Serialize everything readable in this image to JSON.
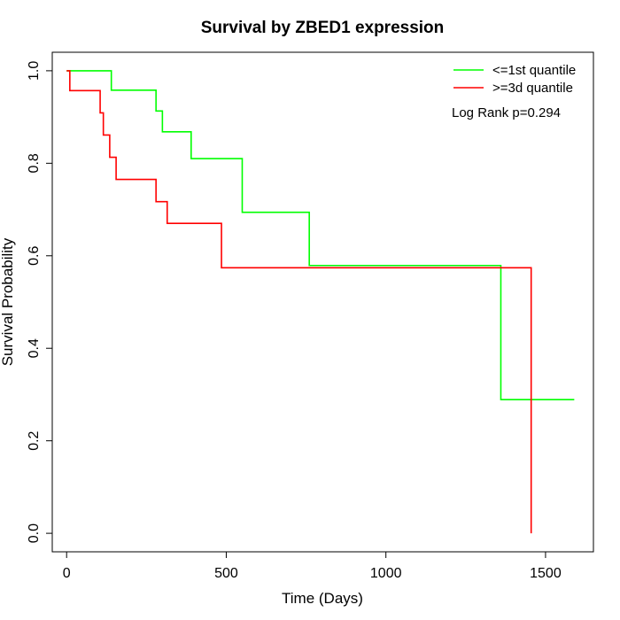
{
  "chart_data": {
    "type": "line",
    "title": "Survival by ZBED1 expression",
    "xlabel": "Time (Days)",
    "ylabel": "Survival Probability",
    "xlim": [
      -45,
      1650
    ],
    "ylim": [
      -0.04,
      1.04
    ],
    "x_ticks": [
      {
        "value": 0,
        "label": "0"
      },
      {
        "value": 500,
        "label": "500"
      },
      {
        "value": 1000,
        "label": "1000"
      },
      {
        "value": 1500,
        "label": "1500"
      }
    ],
    "y_ticks": [
      {
        "value": 0.0,
        "label": "0.0"
      },
      {
        "value": 0.2,
        "label": "0.2"
      },
      {
        "value": 0.4,
        "label": "0.4"
      },
      {
        "value": 0.6,
        "label": "0.6"
      },
      {
        "value": 0.8,
        "label": "0.8"
      },
      {
        "value": 1.0,
        "label": "1.0"
      }
    ],
    "grid": false,
    "legend_position": "top-right",
    "series": [
      {
        "name": "<=1st quantile",
        "color": "#00ff00",
        "style": "step",
        "x": [
          0,
          140,
          280,
          300,
          390,
          550,
          760,
          1360,
          1590
        ],
        "y": [
          1.0,
          0.958,
          0.913,
          0.868,
          0.81,
          0.694,
          0.579,
          0.289,
          0.289
        ]
      },
      {
        "name": ">=3d quantile",
        "color": "#ff0000",
        "style": "step",
        "x": [
          0,
          10,
          105,
          115,
          135,
          155,
          280,
          315,
          485,
          1455,
          1455
        ],
        "y": [
          1.0,
          0.957,
          0.909,
          0.861,
          0.813,
          0.765,
          0.717,
          0.67,
          0.574,
          0.574,
          0.0
        ]
      }
    ],
    "annotations": [
      {
        "text": "Log Rank p=0.294",
        "position": "top-right"
      }
    ]
  }
}
